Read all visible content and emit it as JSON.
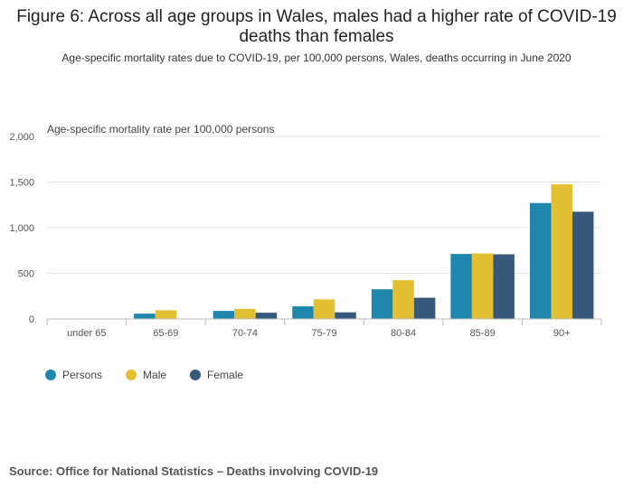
{
  "title": "Figure 6: Across all age groups in Wales, males had a higher rate of COVID-19 deaths than females",
  "subtitle": "Age-specific mortality rates due to COVID-19, per 100,000 persons, Wales, deaths occurring in June 2020",
  "source": "Source: Office for National Statistics – Deaths involving COVID-19",
  "chart_data": {
    "type": "bar",
    "ylabel": "Age-specific mortality rate per 100,000 persons",
    "xlabel": "",
    "ylim": [
      0,
      2000
    ],
    "yticks": [
      0,
      500,
      1000,
      1500,
      2000
    ],
    "ytick_labels": [
      "0",
      "500",
      "1,000",
      "1,500",
      "2,000"
    ],
    "grid": true,
    "legend_position": "bottom-left",
    "categories": [
      "under 65",
      "65-69",
      "70-74",
      "75-79",
      "80-84",
      "85-89",
      "90+"
    ],
    "series": [
      {
        "name": "Persons",
        "color": "#1f86ad",
        "values": [
          3,
          58,
          88,
          138,
          325,
          712,
          1270
        ]
      },
      {
        "name": "Male",
        "color": "#e3c032",
        "values": [
          4,
          95,
          110,
          215,
          425,
          718,
          1475
        ]
      },
      {
        "name": "Female",
        "color": "#36587a",
        "values": [
          2,
          4,
          68,
          72,
          232,
          708,
          1175
        ]
      }
    ]
  }
}
